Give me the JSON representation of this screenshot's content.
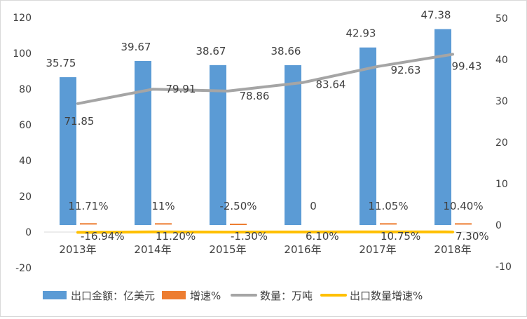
{
  "chart_data": {
    "type": "bar+line",
    "categories": [
      "2013年",
      "2014年",
      "2015年",
      "2016年",
      "2017年",
      "2018年"
    ],
    "left_axis": {
      "ylim": [
        -20,
        120
      ],
      "ticks": [
        "-20",
        "0",
        "20",
        "40",
        "60",
        "80",
        "100",
        "120"
      ]
    },
    "right_axis": {
      "ylim": [
        -10,
        50
      ],
      "ticks": [
        "-10",
        "0",
        "10",
        "20",
        "30",
        "40",
        "50"
      ]
    },
    "grid": false,
    "legend_position": "bottom",
    "series": [
      {
        "name": "出口金额：亿美元",
        "type": "bar",
        "axis": "right",
        "color": "#5B9BD5",
        "values": [
          35.75,
          39.67,
          38.67,
          38.66,
          42.93,
          47.38
        ],
        "labels": [
          "35.75",
          "39.67",
          "38.67",
          "38.66",
          "42.93",
          "47.38"
        ]
      },
      {
        "name": "增速%",
        "type": "bar",
        "axis": "right",
        "color": "#ED7D31",
        "values": [
          0.1171,
          0.11,
          -0.025,
          0,
          0.1105,
          0.104
        ],
        "labels": [
          "11.71%",
          "11%",
          "-2.50%",
          "0",
          "11.05%",
          "10.40%"
        ]
      },
      {
        "name": "数量：万吨",
        "type": "line",
        "axis": "left",
        "color": "#A5A5A5",
        "values": [
          71.85,
          79.91,
          78.86,
          83.64,
          92.63,
          99.43
        ],
        "labels": [
          "71.85",
          "79.91",
          "78.86",
          "83.64",
          "92.63",
          "99.43"
        ]
      },
      {
        "name": "出口数量增速%",
        "type": "line",
        "axis": "left",
        "color": "#FFC000",
        "values": [
          -0.1694,
          0.112,
          -0.013,
          0.061,
          0.1075,
          0.073
        ],
        "labels": [
          "-16.94%",
          "11.20%",
          "-1.30%",
          "6.10%",
          "10.75%",
          "7.30%"
        ]
      }
    ]
  }
}
